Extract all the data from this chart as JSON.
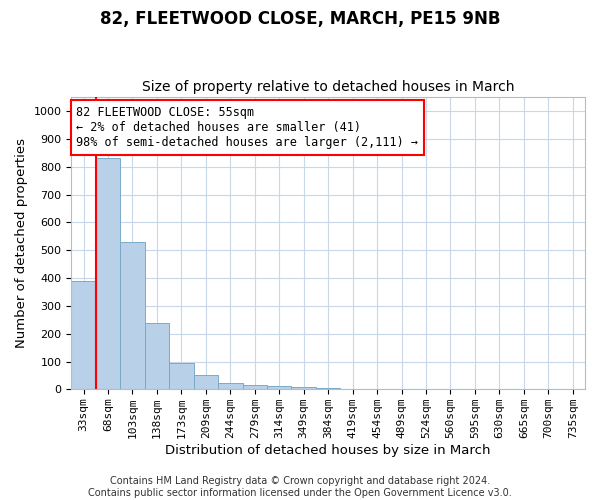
{
  "title": "82, FLEETWOOD CLOSE, MARCH, PE15 9NB",
  "subtitle": "Size of property relative to detached houses in March",
  "xlabel": "Distribution of detached houses by size in March",
  "ylabel": "Number of detached properties",
  "categories": [
    "33sqm",
    "68sqm",
    "103sqm",
    "138sqm",
    "173sqm",
    "209sqm",
    "244sqm",
    "279sqm",
    "314sqm",
    "349sqm",
    "384sqm",
    "419sqm",
    "454sqm",
    "489sqm",
    "524sqm",
    "560sqm",
    "595sqm",
    "630sqm",
    "665sqm",
    "700sqm",
    "735sqm"
  ],
  "values": [
    390,
    830,
    530,
    240,
    95,
    52,
    22,
    15,
    11,
    8,
    5,
    3,
    2,
    2,
    1,
    1,
    1,
    0,
    0,
    0,
    0
  ],
  "bar_color": "#b8d0e8",
  "bar_edge_color": "#7aaac8",
  "ylim": [
    0,
    1050
  ],
  "yticks": [
    0,
    100,
    200,
    300,
    400,
    500,
    600,
    700,
    800,
    900,
    1000
  ],
  "vline_color": "red",
  "annotation_line1": "82 FLEETWOOD CLOSE: 55sqm",
  "annotation_line2": "← 2% of detached houses are smaller (41)",
  "annotation_line3": "98% of semi-detached houses are larger (2,111) →",
  "footer_line1": "Contains HM Land Registry data © Crown copyright and database right 2024.",
  "footer_line2": "Contains public sector information licensed under the Open Government Licence v3.0.",
  "bg_color": "#ffffff",
  "grid_color": "#c8d8e8",
  "title_fontsize": 12,
  "subtitle_fontsize": 10,
  "axis_label_fontsize": 9.5,
  "tick_fontsize": 8,
  "annotation_fontsize": 8.5,
  "footer_fontsize": 7
}
